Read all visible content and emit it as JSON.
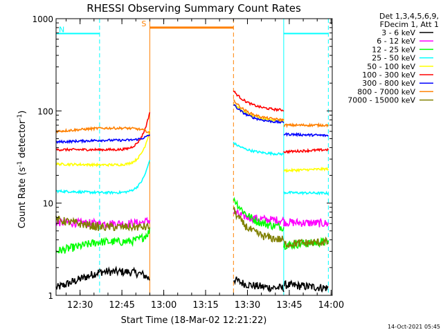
{
  "chart_data": {
    "type": "line",
    "title": "RHESSI Observing Summary Count Rates",
    "xlabel": "Start Time (18-Mar-02 12:21:22)",
    "ylabel": "Count Rate (s⁻¹ detector⁻¹)",
    "ylabel_base": "Count Rate (s",
    "ylabel_sup1": "-1",
    "ylabel_mid": " detector",
    "ylabel_sup2": "-1",
    "ylabel_end": ")",
    "yscale": "log",
    "ylim": [
      1,
      1000
    ],
    "xlim_minutes": [
      0,
      99
    ],
    "x_ticks": [
      {
        "label": "12:30",
        "t": 8.6
      },
      {
        "label": "12:45",
        "t": 23.6
      },
      {
        "label": "13:00",
        "t": 38.6
      },
      {
        "label": "13:15",
        "t": 53.6
      },
      {
        "label": "13:30",
        "t": 68.6
      },
      {
        "label": "13:45",
        "t": 83.6
      },
      {
        "label": "14:00",
        "t": 98.6
      }
    ],
    "y_ticks": [
      {
        "label": "1",
        "v": 1
      },
      {
        "label": "10",
        "v": 10
      },
      {
        "label": "100",
        "v": 100
      },
      {
        "label": "1000",
        "v": 1000
      }
    ],
    "legend_header": [
      "Det 1,3,4,5,6,9,",
      "FDecim 1, Att 1"
    ],
    "series": [
      {
        "name": "3 - 6 keV",
        "color": "#000000",
        "pre": [
          1.2,
          1.8
        ],
        "rise": 1.5,
        "post": [
          1.5,
          1.2
        ],
        "late": [
          1.3,
          1.2
        ]
      },
      {
        "name": "6 - 12 keV",
        "color": "#ff00ff",
        "pre": [
          6.2,
          6.0
        ],
        "rise": 6.5,
        "post": [
          8.0,
          6.5
        ],
        "late": [
          6.2,
          6.0
        ]
      },
      {
        "name": "12 - 25 keV",
        "color": "#00ff00",
        "pre": [
          3.0,
          3.8
        ],
        "rise": 5.0,
        "post": [
          11.5,
          5.5
        ],
        "late": [
          3.5,
          3.8
        ]
      },
      {
        "name": "25 - 50 keV",
        "color": "#00ffff",
        "pre": [
          13.5,
          13.0
        ],
        "rise": 30,
        "post": [
          45,
          34
        ],
        "late": [
          13.0,
          12.8
        ]
      },
      {
        "name": "50 - 100 keV",
        "color": "#ffff00",
        "pre": [
          26.5,
          26.0
        ],
        "rise": 62,
        "post": [
          120,
          78
        ],
        "late": [
          22.5,
          23.5
        ]
      },
      {
        "name": "100 - 300 keV",
        "color": "#ff0000",
        "pre": [
          38,
          38
        ],
        "rise": 98,
        "post": [
          165,
          102
        ],
        "late": [
          36,
          38
        ]
      },
      {
        "name": "300 - 800 keV",
        "color": "#0000ff",
        "pre": [
          46,
          48
        ],
        "rise": 55,
        "post": [
          118,
          75
        ],
        "late": [
          56,
          54
        ]
      },
      {
        "name": "800 - 7000 keV",
        "color": "#ff8000",
        "pre": [
          60,
          65
        ],
        "rise": 58,
        "post": [
          132,
          80
        ],
        "late": [
          70,
          70
        ]
      },
      {
        "name": "7000 - 15000 keV",
        "color": "#808000",
        "pre": [
          6.6,
          5.5
        ],
        "rise": 5.5,
        "post": [
          8.5,
          4.0
        ],
        "late": [
          3.6,
          3.8
        ]
      }
    ],
    "annotations": [
      {
        "label": "N",
        "color": "#00ffff",
        "t_start": 0,
        "t_end": 15.6,
        "level": 690
      },
      {
        "label": "S",
        "color": "#ff8000",
        "t_start": 33.6,
        "t_end": 63.6,
        "level": 800
      },
      {
        "label": "",
        "color": "#00ffff",
        "t_start": 81.6,
        "t_end": 97.6,
        "level": 690
      }
    ],
    "dashed_markers": [
      {
        "t": 15.6,
        "color": "#00ffff"
      },
      {
        "t": 63.6,
        "color": "#ff8000"
      },
      {
        "t": 97.6,
        "color": "#00ffff"
      }
    ],
    "solid_markers": [
      {
        "t": 0.0,
        "color": "#00ffff"
      },
      {
        "t": 33.6,
        "color": "#ff8000"
      },
      {
        "t": 81.6,
        "color": "#00ffff"
      }
    ],
    "segments": {
      "pre": [
        0,
        15.6
      ],
      "rise": [
        15.6,
        33.6
      ],
      "post": [
        63.6,
        81.6
      ],
      "late": [
        81.6,
        97.6
      ]
    }
  },
  "footer_timestamp": "14-Oct-2021 05:45"
}
